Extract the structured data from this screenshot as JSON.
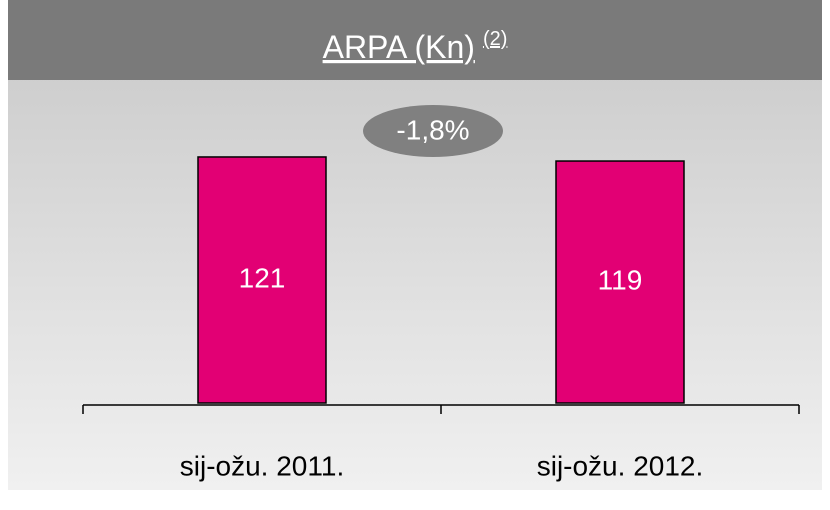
{
  "chart_data": {
    "type": "bar",
    "title": "ARPA (Kn)",
    "title_note": "(2)",
    "annotation": "-1,8%",
    "categories": [
      "sij-ožu. 2011.",
      "sij-ožu. 2012."
    ],
    "values": [
      121,
      119
    ],
    "color": "#e20074",
    "ylim": [
      0,
      150
    ]
  }
}
